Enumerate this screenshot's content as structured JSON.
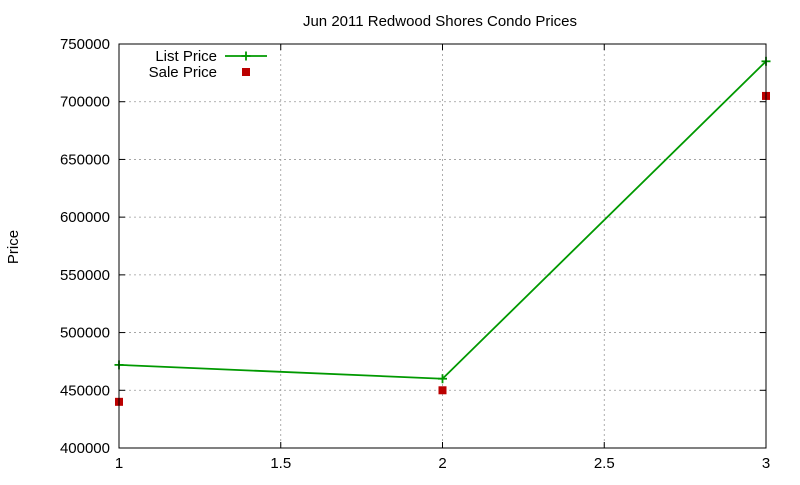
{
  "chart_data": {
    "type": "line",
    "title": "Jun 2011 Redwood Shores Condo Prices",
    "xlabel": "",
    "ylabel": "Price",
    "xlim": [
      1,
      3
    ],
    "ylim": [
      400000,
      750000
    ],
    "x_ticks": [
      1,
      1.5,
      2,
      2.5,
      3
    ],
    "x_tick_labels": [
      "1",
      "1.5",
      "2",
      "2.5",
      "3"
    ],
    "y_ticks": [
      400000,
      450000,
      500000,
      550000,
      600000,
      650000,
      700000,
      750000
    ],
    "y_tick_labels": [
      "400000",
      "450000",
      "500000",
      "550000",
      "600000",
      "650000",
      "700000",
      "750000"
    ],
    "grid": true,
    "legend_position": "top-left",
    "series": [
      {
        "name": "List Price",
        "style": "line-with-plus-markers",
        "color": "#009900",
        "x": [
          1,
          2,
          3
        ],
        "y": [
          472000,
          460000,
          735000
        ]
      },
      {
        "name": "Sale Price",
        "style": "square-markers",
        "color": "#bb0000",
        "x": [
          1,
          2,
          3
        ],
        "y": [
          440000,
          450000,
          705000
        ]
      }
    ]
  }
}
